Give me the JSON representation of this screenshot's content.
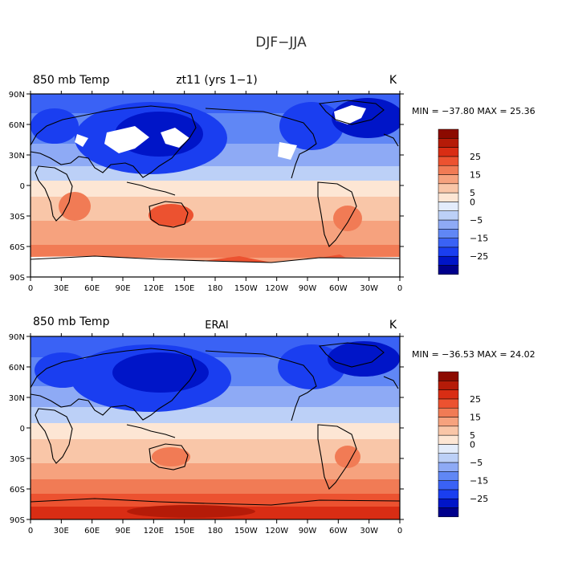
{
  "figure": {
    "title": "DJF−JJA"
  },
  "colorbar": {
    "colors": [
      "#00008c",
      "#0015c8",
      "#1a3ef0",
      "#3a62f5",
      "#6087f5",
      "#8eaaf5",
      "#bcd0f7",
      "#e3ecfb",
      "#fde6d4",
      "#f9c6a8",
      "#f6a27e",
      "#f17b55",
      "#ec5230",
      "#d92d14",
      "#b51b08",
      "#8c0a00"
    ],
    "labels": [
      "25",
      "15",
      "5",
      "0",
      "−5",
      "−15",
      "−25"
    ],
    "label_slots": [
      3,
      5,
      7,
      8,
      10,
      12,
      14
    ]
  },
  "panels": [
    {
      "variable": "850 mb Temp",
      "case": "zt11 (yrs 1−1)",
      "units": "K",
      "min_max": "MIN = −37.80  MAX =  25.36",
      "missing_land": true
    },
    {
      "variable": "850 mb Temp",
      "case": "ERAI",
      "units": "K",
      "min_max": "MIN = −36.53  MAX =  24.02",
      "missing_land": false
    }
  ],
  "axes": {
    "lat_labels": [
      "90N",
      "60N",
      "30N",
      "0",
      "30S",
      "60S",
      "90S"
    ],
    "lon_labels": [
      "0",
      "30E",
      "60E",
      "90E",
      "120E",
      "150E",
      "180",
      "150W",
      "120W",
      "90W",
      "60W",
      "30W",
      "0"
    ]
  }
}
